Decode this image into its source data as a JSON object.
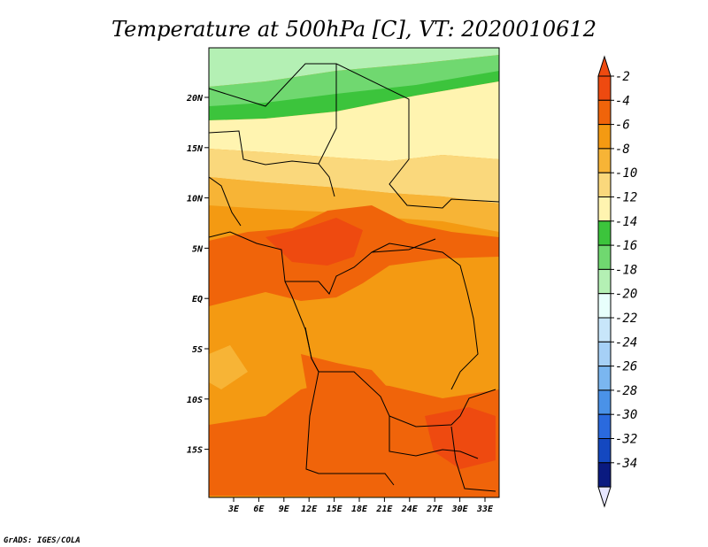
{
  "title": "Temperature at 500hPa [C], VT: 2020010612",
  "credit": "GrADS: IGES/COLA",
  "map": {
    "lon_labels": [
      "3E",
      "6E",
      "9E",
      "12E",
      "15E",
      "18E",
      "21E",
      "24E",
      "27E",
      "30E",
      "33E"
    ],
    "lat_labels": [
      "20N",
      "15N",
      "10N",
      "5N",
      "EQ",
      "5S",
      "10S",
      "15S"
    ]
  },
  "colorbar": {
    "labels": [
      "-2",
      "-4",
      "-6",
      "-8",
      "-10",
      "-12",
      "-14",
      "-16",
      "-18",
      "-20",
      "-22",
      "-24",
      "-26",
      "-28",
      "-30",
      "-32",
      "-34"
    ],
    "colors": [
      "#ee4a10",
      "#f0640a",
      "#f49a12",
      "#f7b436",
      "#fad87c",
      "#fff4b0",
      "#3cc43c",
      "#70d870",
      "#b4f0b4",
      "#e8fffc",
      "#c8e6fa",
      "#a6d0f6",
      "#7ab6f0",
      "#4a92e8",
      "#2a6ade",
      "#1448c0",
      "#0a1a80",
      "#1a0a60"
    ],
    "top_color": "#ee4a10",
    "bottom_color": "#e6e6ff"
  }
}
